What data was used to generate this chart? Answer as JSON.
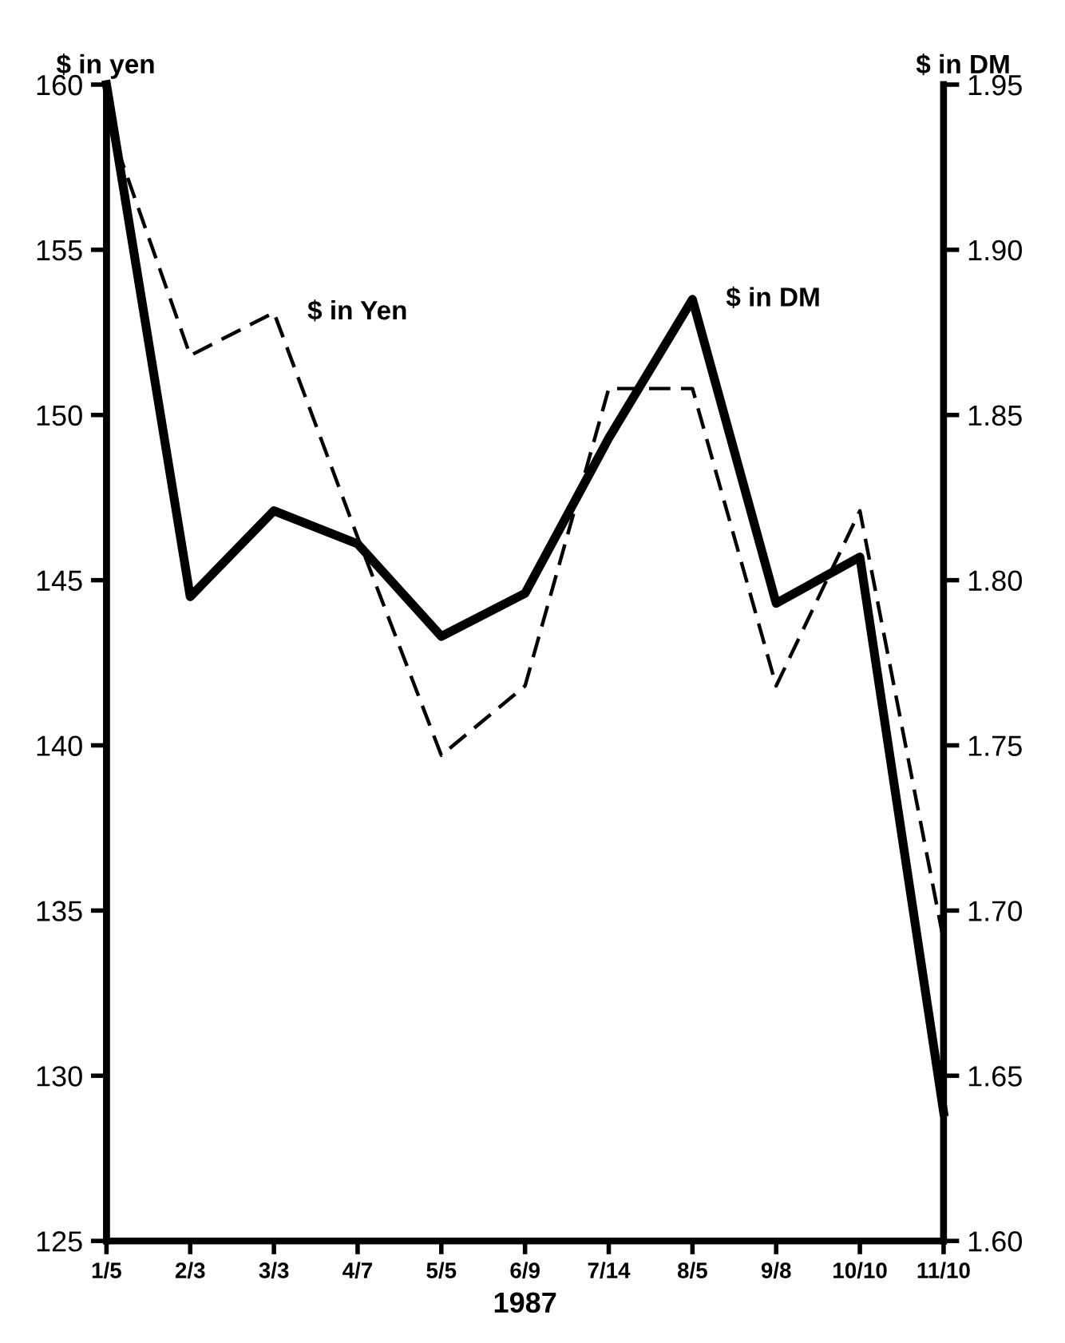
{
  "chart_data": {
    "type": "line",
    "ylabel": "$ in yen",
    "y2label": "$ in DM",
    "xlabel": "1987",
    "categories": [
      "1/5",
      "2/3",
      "3/3",
      "4/7",
      "5/5",
      "6/9",
      "7/14",
      "8/5",
      "9/8",
      "10/10",
      "11/10"
    ],
    "series": [
      {
        "name": "$ in Yen",
        "color": "#000000",
        "line_style": "dashed",
        "values": [
          159,
          151.8,
          153.1,
          146.3,
          139.7,
          141.8,
          150.8,
          150.8,
          141.8,
          147.1,
          134.1
        ]
      },
      {
        "name": "$ in DM",
        "color": "#000000",
        "line_style": "solid",
        "axis": "y2",
        "values": [
          1.95,
          1.795,
          1.821,
          1.811,
          1.783,
          1.796,
          1.843,
          1.885,
          1.793,
          1.807,
          1.639
        ]
      }
    ],
    "ylim": [
      125,
      160
    ],
    "yticks": [
      125,
      130,
      135,
      140,
      145,
      150,
      155,
      160
    ],
    "y2lim": [
      1.6,
      1.95
    ],
    "y2ticks": [
      {
        "value": 1.6,
        "label": "1.60"
      },
      {
        "value": 1.65,
        "label": "1.65"
      },
      {
        "value": 1.7,
        "label": "1.70"
      },
      {
        "value": 1.75,
        "label": "1.75"
      },
      {
        "value": 1.8,
        "label": "1.80"
      },
      {
        "value": 1.85,
        "label": "1.85"
      },
      {
        "value": 1.9,
        "label": "1.90"
      },
      {
        "value": 1.95,
        "label": "1.95"
      }
    ],
    "grid": false,
    "legend": false,
    "marker": "none"
  }
}
